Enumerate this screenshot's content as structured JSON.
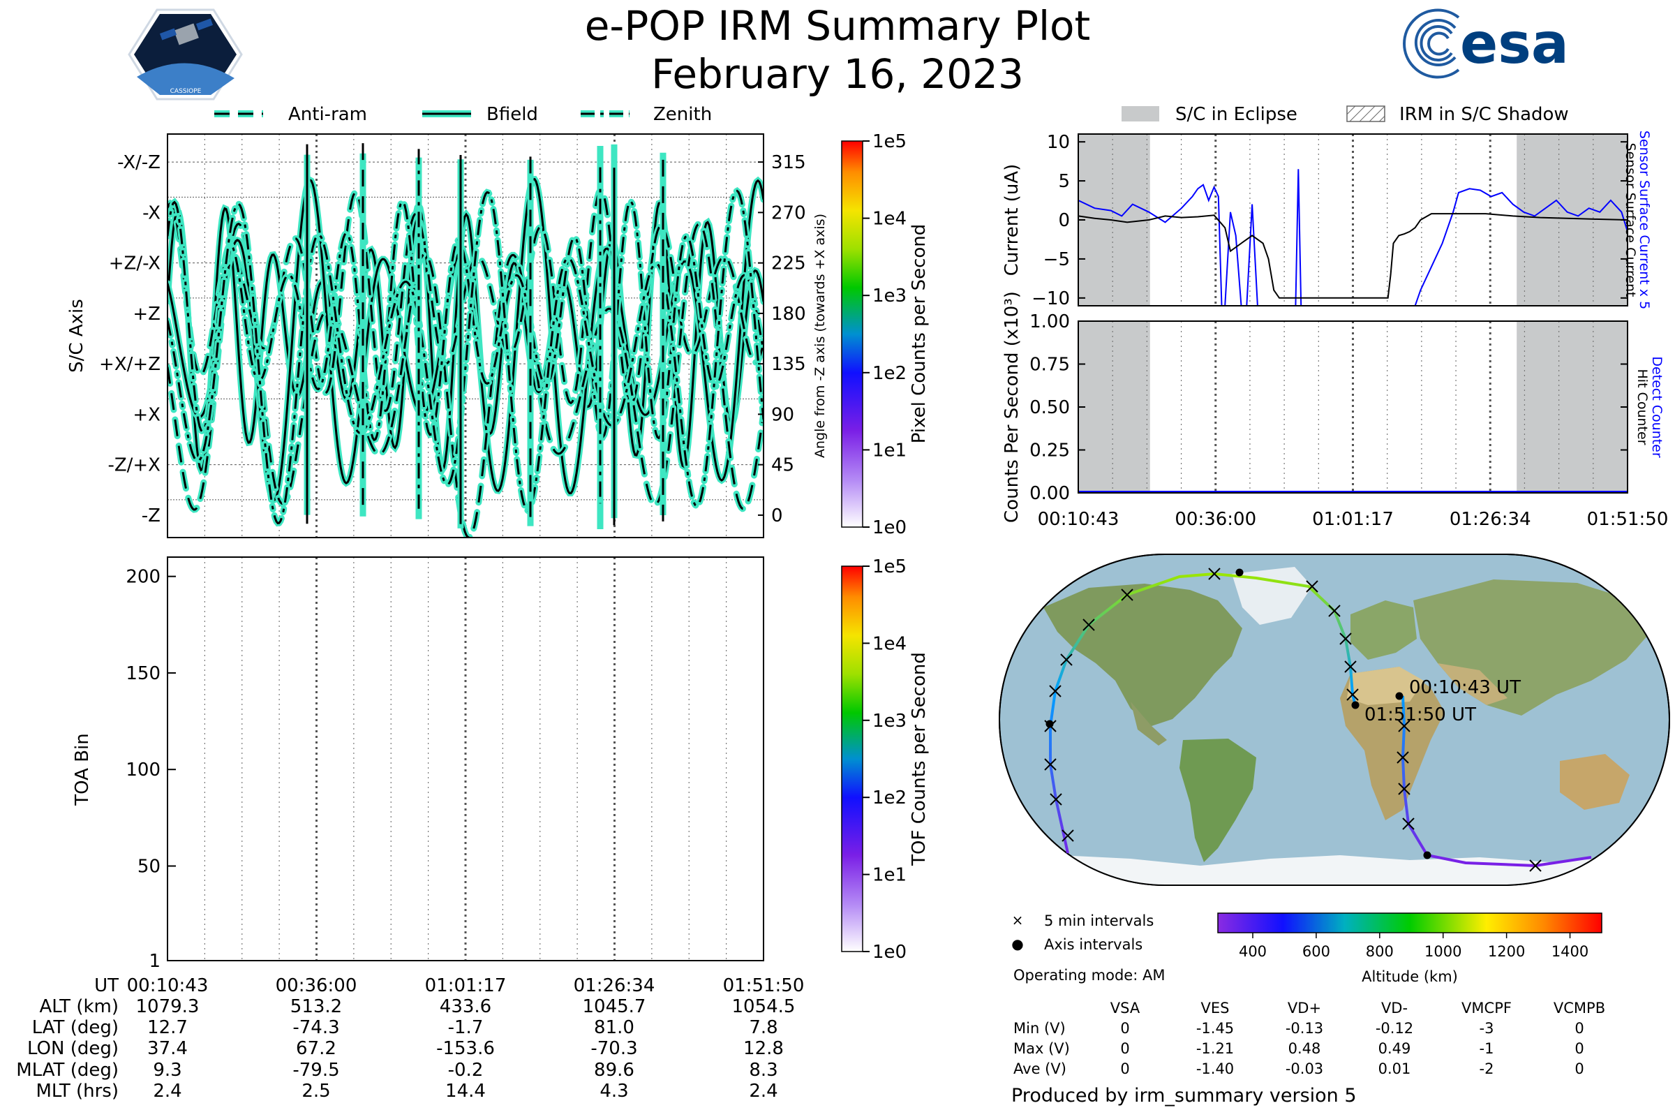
{
  "header": {
    "title": "e-POP IRM Summary Plot",
    "date": "February 16, 2023",
    "left_logo_text": "CASSIOPE",
    "right_logo_text": "esa"
  },
  "legends": {
    "left": [
      {
        "label": "Anti-ram",
        "style": "dashed"
      },
      {
        "label": "Bfield",
        "style": "solid"
      },
      {
        "label": "Zenith",
        "style": "dashdot"
      }
    ],
    "right": [
      {
        "label": "S/C in Eclipse",
        "style": "gray-fill"
      },
      {
        "label": "IRM in S/C Shadow",
        "style": "hatched"
      }
    ]
  },
  "colors": {
    "trace_fill": "#3ee6c2",
    "trace_line": "#000000",
    "eclipse_gray": "#c8cacb",
    "blue": "#0000ff"
  },
  "chart_data": [
    {
      "id": "sc-axis",
      "type": "line",
      "ylabel": "S/C Axis",
      "y2label": "Angle from -Z axis (towards +X axis)",
      "y_axis_labels": [
        "-X/-Z",
        "-X",
        "+Z/-X",
        "+Z",
        "+X/+Z",
        "+X",
        "-Z/+X",
        "-Z"
      ],
      "y2_ticks": [
        "315",
        "270",
        "225",
        "180",
        "135",
        "90",
        "45",
        "0"
      ],
      "ylim": [
        -20,
        340
      ],
      "series": [
        {
          "name": "Anti-ram",
          "style": "dashed"
        },
        {
          "name": "Bfield",
          "style": "solid"
        },
        {
          "name": "Zenith",
          "style": "dashdot"
        }
      ],
      "colorbar": {
        "label": "Pixel Counts per Second",
        "ticks": [
          "1e5",
          "1e4",
          "1e3",
          "1e2",
          "1e1",
          "1e0"
        ]
      }
    },
    {
      "id": "toa",
      "type": "heatmap",
      "ylabel": "TOA Bin",
      "yticks": [
        "200",
        "150",
        "100",
        "50",
        "1"
      ],
      "ylim": [
        1,
        210
      ],
      "colorbar": {
        "label": "TOF Counts per Second",
        "ticks": [
          "1e5",
          "1e4",
          "1e3",
          "1e2",
          "1e1",
          "1e0"
        ]
      }
    },
    {
      "id": "current",
      "type": "line",
      "ylabel": "Current (uA)",
      "right_labels": [
        "Sensor Surface Current x 5",
        "Sensor Surface Current"
      ],
      "yticks": [
        "10",
        "5",
        "0",
        "−5",
        "−10"
      ],
      "ylim": [
        -11,
        11
      ],
      "xlim": [
        0,
        101.1
      ],
      "eclipse_ranges": [
        [
          0,
          13.2
        ],
        [
          80.7,
          101.1
        ]
      ],
      "series": [
        {
          "name": "Sensor Surface Current x 5",
          "color": "#0000ff",
          "x": [
            0,
            3,
            6,
            8,
            10,
            13,
            16,
            19,
            21,
            22,
            23,
            24,
            25,
            25.8,
            26.4,
            27,
            28,
            29,
            30,
            31,
            32,
            33,
            34,
            35,
            36,
            37,
            38,
            39,
            40,
            40.5,
            41,
            42,
            43,
            44,
            45,
            46,
            47,
            48,
            49,
            50,
            52,
            55,
            57,
            59,
            60,
            61,
            62,
            63,
            65,
            67,
            69,
            70,
            72,
            74,
            76,
            78,
            80,
            82,
            84,
            86,
            88,
            90,
            92,
            94,
            96,
            98,
            100,
            101.1
          ],
          "y": [
            2.5,
            1.5,
            1.2,
            0.5,
            2.0,
            1.0,
            -0.3,
            1.5,
            3.0,
            4.0,
            4.5,
            2.5,
            4.2,
            3.0,
            -11,
            -11,
            1.0,
            -2,
            -11,
            -11,
            2,
            -11,
            -11,
            -11,
            -11,
            -11,
            -11,
            -11,
            -11,
            6.5,
            -11,
            -11,
            -11,
            -11,
            -11,
            -11,
            -11,
            -11,
            -11,
            -11,
            -11,
            -11,
            -11,
            -11,
            -11,
            -11,
            -11,
            -9,
            -6,
            -3,
            1,
            3.5,
            4,
            3.8,
            3.0,
            3.5,
            2.0,
            1.0,
            0.5,
            1.5,
            2.5,
            1.0,
            0.5,
            1.5,
            1.0,
            2.5,
            1.0,
            -1.5
          ]
        },
        {
          "name": "Sensor Surface Current",
          "color": "#000000",
          "x": [
            0,
            3,
            6,
            9,
            13,
            16,
            19,
            22,
            25,
            27,
            28,
            30,
            32,
            34,
            35,
            36,
            37,
            38,
            39,
            40,
            45,
            50,
            55,
            56,
            57,
            57.5,
            58,
            59,
            60,
            61,
            62,
            63,
            65,
            70,
            75,
            80,
            85,
            90,
            95,
            101.1
          ],
          "y": [
            0.5,
            0.2,
            0,
            -0.3,
            0,
            0.5,
            0.3,
            0.4,
            0.6,
            -1,
            -4,
            -3,
            -2,
            -3,
            -5,
            -9,
            -10,
            -10,
            -10,
            -10,
            -10,
            -10,
            -10,
            -10,
            -10,
            -7,
            -3,
            -2,
            -1.8,
            -1.5,
            -1,
            0,
            0.8,
            0.8,
            0.8,
            0.5,
            0.3,
            0.2,
            0.1,
            0
          ]
        }
      ]
    },
    {
      "id": "counts",
      "type": "line",
      "ylabel": "Counts Per Second (x10³)",
      "right_labels": [
        "Detect Counter",
        "Hit Counter"
      ],
      "yticks": [
        "1.00",
        "0.75",
        "0.50",
        "0.25",
        "0.00"
      ],
      "ylim": [
        0,
        1
      ],
      "xlim": [
        0,
        101.1
      ],
      "xticks": [
        "00:10:43",
        "00:36:00",
        "01:01:17",
        "01:26:34",
        "01:51:50"
      ],
      "eclipse_ranges": [
        [
          0,
          13.2
        ],
        [
          80.7,
          101.1
        ]
      ],
      "series": [
        {
          "name": "Detect Counter",
          "color": "#0000ff",
          "x": [
            0,
            101.1
          ],
          "y": [
            0,
            0
          ]
        },
        {
          "name": "Hit Counter",
          "color": "#000000",
          "x": [
            0,
            101.1
          ],
          "y": [
            0,
            0
          ]
        }
      ]
    }
  ],
  "map": {
    "start_label": "00:10:43 UT",
    "end_label": "01:51:50 UT",
    "legend": [
      {
        "symbol": "×",
        "label": "5 min intervals"
      },
      {
        "symbol": "●",
        "label": "Axis intervals"
      }
    ],
    "operating_mode": "Operating mode: AM",
    "altitude_colorbar": {
      "label": "Altitude (km)",
      "ticks": [
        "400",
        "600",
        "800",
        "1000",
        "1200",
        "1400"
      ],
      "range": [
        290,
        1500
      ]
    }
  },
  "time_axis": {
    "row_labels": [
      "UT",
      "ALT (km)",
      "LAT (deg)",
      "LON (deg)",
      "MLAT (deg)",
      "MLT (hrs)"
    ],
    "columns": [
      [
        "00:10:43",
        "1079.3",
        "12.7",
        "37.4",
        "9.3",
        "2.4"
      ],
      [
        "00:36:00",
        "513.2",
        "-74.3",
        "67.2",
        "-79.5",
        "2.5"
      ],
      [
        "01:01:17",
        "433.6",
        "-1.7",
        "-153.6",
        "-0.2",
        "14.4"
      ],
      [
        "01:26:34",
        "1045.7",
        "81.0",
        "-70.3",
        "89.6",
        "4.3"
      ],
      [
        "01:51:50",
        "1054.5",
        "7.8",
        "12.8",
        "8.3",
        "2.4"
      ]
    ]
  },
  "voltage_table": {
    "headers": [
      "",
      "VSA",
      "VES",
      "VD+",
      "VD-",
      "VMCPF",
      "VCMPB"
    ],
    "rows": [
      [
        "Min (V)",
        "0",
        "-1.45",
        "-0.13",
        "-0.12",
        "-3",
        "0"
      ],
      [
        "Max (V)",
        "0",
        "-1.21",
        "0.48",
        "0.49",
        "-1",
        "0"
      ],
      [
        "Ave (V)",
        "0",
        "-1.40",
        "-0.03",
        "0.01",
        "-2",
        "0"
      ]
    ]
  },
  "footer": "Produced by irm_summary version 5"
}
